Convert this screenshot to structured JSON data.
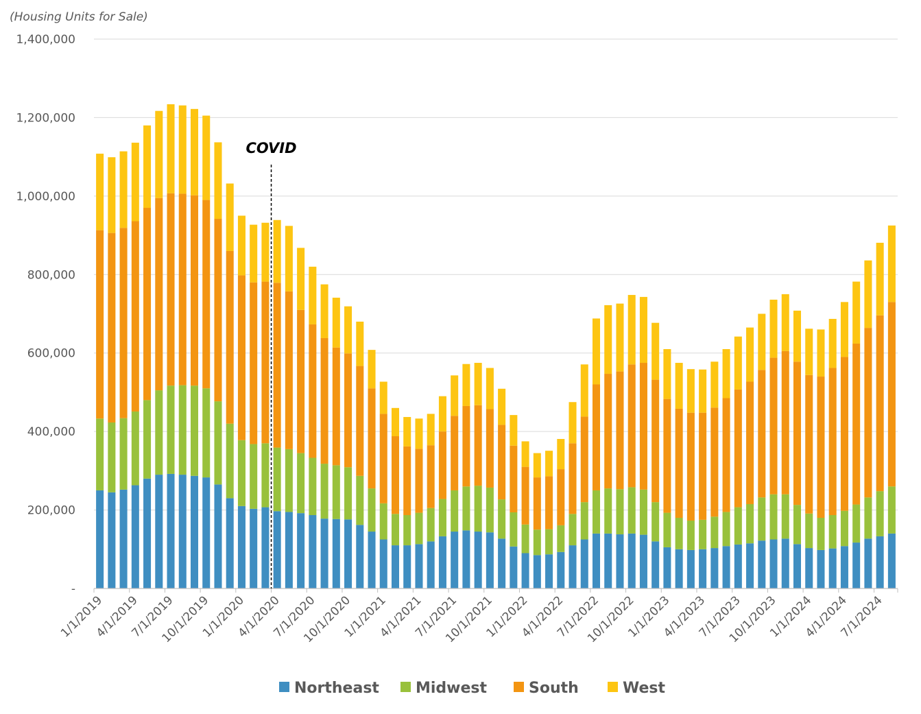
{
  "colors": {
    "Northeast": "#3f8ec1",
    "Midwest": "#99c13c",
    "South": "#f39512",
    "West": "#fdc512",
    "grid": "#d9d9d9",
    "axis": "#bfbfbf"
  },
  "chart_data": {
    "type": "bar",
    "stacked": true,
    "unit_label": "(Housing Units for Sale)",
    "annotation": {
      "label": "COVID",
      "at": "4/1/2020"
    },
    "ylim": [
      0,
      1400000
    ],
    "y_ticks": [
      0,
      200000,
      400000,
      600000,
      800000,
      1000000,
      1200000,
      1400000
    ],
    "y_tick_labels": [
      "-",
      "200,000",
      "400,000",
      "600,000",
      "800,000",
      "1,000,000",
      "1,200,000",
      "1,400,000"
    ],
    "x_tick_labels": [
      "1/1/2019",
      "4/1/2019",
      "7/1/2019",
      "10/1/2019",
      "1/1/2020",
      "4/1/2020",
      "7/1/2020",
      "10/1/2020",
      "1/1/2021",
      "4/1/2021",
      "7/1/2021",
      "10/1/2021",
      "1/1/2022",
      "4/1/2022",
      "7/1/2022",
      "10/1/2022",
      "1/1/2023",
      "4/1/2023",
      "7/1/2023",
      "10/1/2023",
      "1/1/2024",
      "4/1/2024",
      "7/1/2024"
    ],
    "categories": [
      "1/1/2019",
      "2/1/2019",
      "3/1/2019",
      "4/1/2019",
      "5/1/2019",
      "6/1/2019",
      "7/1/2019",
      "8/1/2019",
      "9/1/2019",
      "10/1/2019",
      "11/1/2019",
      "12/1/2019",
      "1/1/2020",
      "2/1/2020",
      "3/1/2020",
      "4/1/2020",
      "5/1/2020",
      "6/1/2020",
      "7/1/2020",
      "8/1/2020",
      "9/1/2020",
      "10/1/2020",
      "11/1/2020",
      "12/1/2020",
      "1/1/2021",
      "2/1/2021",
      "3/1/2021",
      "4/1/2021",
      "5/1/2021",
      "6/1/2021",
      "7/1/2021",
      "8/1/2021",
      "9/1/2021",
      "10/1/2021",
      "11/1/2021",
      "12/1/2021",
      "1/1/2022",
      "2/1/2022",
      "3/1/2022",
      "4/1/2022",
      "5/1/2022",
      "6/1/2022",
      "7/1/2022",
      "8/1/2022",
      "9/1/2022",
      "10/1/2022",
      "11/1/2022",
      "12/1/2022",
      "1/1/2023",
      "2/1/2023",
      "3/1/2023",
      "4/1/2023",
      "5/1/2023",
      "6/1/2023",
      "7/1/2023",
      "8/1/2023",
      "9/1/2023",
      "10/1/2023",
      "11/1/2023",
      "12/1/2023",
      "1/1/2024",
      "2/1/2024",
      "3/1/2024",
      "4/1/2024",
      "5/1/2024",
      "6/1/2024",
      "7/1/2024",
      "8/1/2024"
    ],
    "series": [
      {
        "name": "Northeast",
        "values": [
          250000,
          245000,
          252000,
          263000,
          280000,
          290000,
          292000,
          290000,
          287000,
          283000,
          265000,
          230000,
          210000,
          203000,
          207000,
          197000,
          195000,
          192000,
          187000,
          178000,
          177000,
          176000,
          162000,
          145000,
          125000,
          110000,
          110000,
          113000,
          120000,
          133000,
          145000,
          148000,
          145000,
          143000,
          127000,
          107000,
          90000,
          85000,
          87000,
          93000,
          110000,
          125000,
          140000,
          140000,
          138000,
          140000,
          137000,
          120000,
          105000,
          100000,
          98000,
          100000,
          103000,
          108000,
          112000,
          115000,
          122000,
          125000,
          127000,
          113000,
          103000,
          98000,
          102000,
          108000,
          117000,
          127000,
          133000,
          140000
        ]
      },
      {
        "name": "Midwest",
        "values": [
          183000,
          178000,
          182000,
          188000,
          200000,
          215000,
          225000,
          228000,
          230000,
          227000,
          212000,
          190000,
          168000,
          165000,
          163000,
          162000,
          160000,
          153000,
          146000,
          140000,
          137000,
          133000,
          125000,
          110000,
          92000,
          80000,
          77000,
          80000,
          85000,
          95000,
          105000,
          112000,
          117000,
          114000,
          100000,
          87000,
          73000,
          65000,
          64000,
          68000,
          80000,
          95000,
          110000,
          115000,
          115000,
          118000,
          115000,
          100000,
          88000,
          80000,
          75000,
          75000,
          80000,
          87000,
          95000,
          100000,
          110000,
          115000,
          113000,
          100000,
          88000,
          82000,
          85000,
          90000,
          97000,
          105000,
          115000,
          120000
        ]
      },
      {
        "name": "South",
        "values": [
          480000,
          483000,
          485000,
          485000,
          490000,
          490000,
          490000,
          488000,
          485000,
          480000,
          465000,
          440000,
          420000,
          412000,
          412000,
          420000,
          402000,
          365000,
          340000,
          320000,
          300000,
          290000,
          280000,
          255000,
          228000,
          198000,
          175000,
          163000,
          160000,
          172000,
          190000,
          205000,
          205000,
          200000,
          190000,
          170000,
          147000,
          133000,
          135000,
          143000,
          180000,
          218000,
          270000,
          292000,
          300000,
          313000,
          323000,
          312000,
          290000,
          278000,
          275000,
          273000,
          278000,
          290000,
          300000,
          312000,
          325000,
          348000,
          365000,
          365000,
          353000,
          360000,
          375000,
          392000,
          410000,
          432000,
          448000,
          470000
        ]
      },
      {
        "name": "West",
        "values": [
          195000,
          193000,
          195000,
          200000,
          210000,
          222000,
          227000,
          225000,
          220000,
          215000,
          195000,
          172000,
          152000,
          147000,
          150000,
          160000,
          167000,
          158000,
          147000,
          137000,
          127000,
          120000,
          113000,
          98000,
          82000,
          72000,
          75000,
          77000,
          80000,
          90000,
          103000,
          107000,
          108000,
          105000,
          92000,
          78000,
          65000,
          62000,
          65000,
          77000,
          105000,
          133000,
          168000,
          175000,
          173000,
          177000,
          168000,
          145000,
          127000,
          117000,
          111000,
          110000,
          117000,
          125000,
          135000,
          138000,
          143000,
          148000,
          145000,
          130000,
          118000,
          120000,
          125000,
          140000,
          158000,
          172000,
          185000,
          195000
        ]
      }
    ],
    "legend": {
      "position": "bottom",
      "entries": [
        "Northeast",
        "Midwest",
        "South",
        "West"
      ]
    }
  }
}
